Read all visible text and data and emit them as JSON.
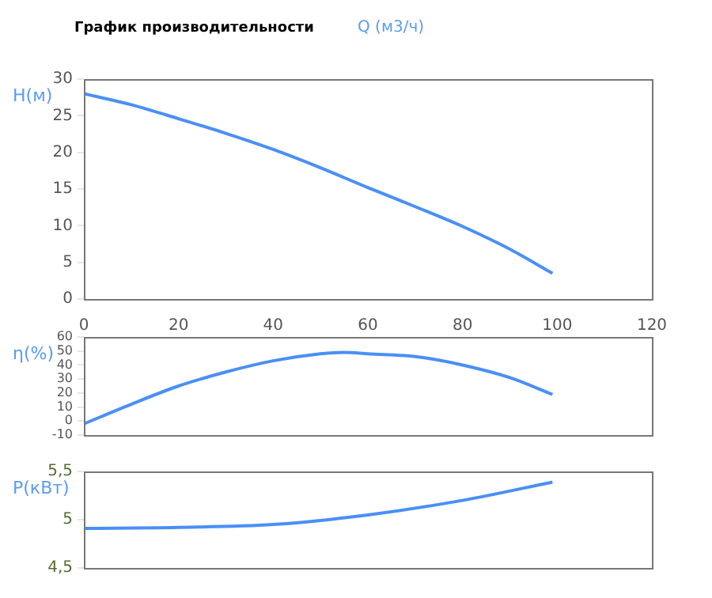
{
  "chart_data": [
    {
      "type": "line",
      "title": "График производительности",
      "xlabel": "Q (м3/ч)",
      "ylabel": "H(м)",
      "xlim": [
        0,
        120
      ],
      "xticks": [
        0,
        20,
        40,
        60,
        80,
        100,
        120
      ],
      "ylim": [
        0,
        30
      ],
      "yticks": [
        0,
        5,
        10,
        15,
        20,
        25,
        30
      ],
      "grid": false,
      "legend": false,
      "series": [
        {
          "color": "#4a8ff5",
          "x": [
            0,
            10,
            20,
            30,
            40,
            50,
            60,
            70,
            80,
            90,
            99
          ],
          "values": [
            28,
            26.5,
            24.6,
            22.6,
            20.4,
            17.9,
            15.2,
            12.6,
            9.9,
            6.8,
            3.5
          ]
        }
      ]
    },
    {
      "type": "line",
      "ylabel": "η(%)",
      "xlim": [
        0,
        120
      ],
      "ylim": [
        -10,
        60
      ],
      "yticks": [
        -10,
        0,
        10,
        20,
        30,
        40,
        50,
        60
      ],
      "grid": false,
      "legend": false,
      "tick_labels": "y",
      "series": [
        {
          "color": "#4a8ff5",
          "x": [
            0,
            10,
            20,
            30,
            40,
            50,
            55,
            60,
            70,
            80,
            90,
            99
          ],
          "values": [
            -2,
            12,
            25,
            35,
            43,
            48,
            49,
            48,
            46,
            40,
            31,
            19
          ]
        }
      ]
    },
    {
      "type": "line",
      "ylabel": "P(кВт)",
      "xlim": [
        0,
        120
      ],
      "ylim": [
        4.5,
        5.5
      ],
      "yticks": [
        {
          "value": 4.5,
          "label": "4,5"
        },
        5,
        {
          "value": 5.5,
          "label": "5,5"
        }
      ],
      "grid": false,
      "legend": false,
      "tick_labels": "y",
      "series": [
        {
          "color": "#4a8ff5",
          "x": [
            0,
            20,
            40,
            60,
            80,
            99
          ],
          "values": [
            4.91,
            4.92,
            4.95,
            5.05,
            5.2,
            5.39
          ]
        }
      ]
    }
  ]
}
